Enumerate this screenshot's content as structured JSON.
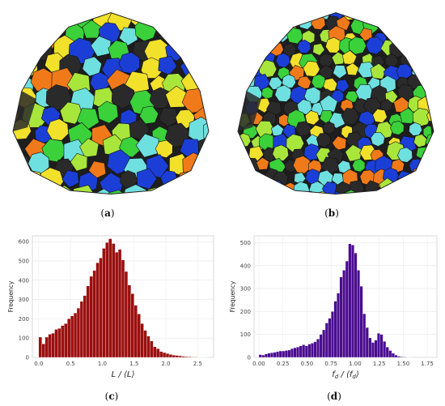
{
  "captions": {
    "a": {
      "open": "(",
      "letter": "a",
      "close": ")"
    },
    "b": {
      "open": "(",
      "letter": "b",
      "close": ")"
    },
    "c": {
      "open": "(",
      "letter": "c",
      "close": ")"
    },
    "d": {
      "open": "(",
      "letter": "d",
      "close": ")"
    }
  },
  "renders": {
    "a": {
      "palette": [
        "#3ad13a",
        "#f2e12b",
        "#1b3fd6",
        "#f07a1a",
        "#6fe0e0",
        "#2a2a2a",
        "#a9e63b"
      ]
    },
    "b": {
      "palette": [
        "#3ad13a",
        "#f2e12b",
        "#1b3fd6",
        "#f07a1a",
        "#6fe0e0",
        "#2a2a2a",
        "#a9e63b"
      ]
    }
  },
  "chart_data": [
    {
      "type": "bar",
      "ylabel": "Frequency",
      "xlabel": "L/⟨L⟩",
      "xlabel_parts": {
        "main": "L",
        "sep": " / ",
        "lbrack": "⟨",
        "inner": "L",
        "rbrack": "⟩"
      },
      "xlim": [
        -0.1,
        2.75
      ],
      "ylim": [
        0,
        630
      ],
      "xticks": [
        0.0,
        0.5,
        1.0,
        1.5,
        2.0,
        2.5
      ],
      "xtick_labels": [
        "0.0",
        "0.5",
        "1.0",
        "1.5",
        "2.0",
        "2.5"
      ],
      "yticks": [
        0,
        100,
        200,
        300,
        400,
        500,
        600
      ],
      "ytick_labels": [
        "0",
        "100",
        "200",
        "300",
        "400",
        "500",
        "600"
      ],
      "bin_start": 0.0,
      "bin_width": 0.05,
      "color": "#9b0f0f",
      "values": [
        105,
        70,
        105,
        120,
        125,
        145,
        150,
        165,
        175,
        200,
        215,
        230,
        255,
        290,
        320,
        370,
        420,
        450,
        490,
        515,
        565,
        595,
        615,
        590,
        545,
        560,
        505,
        445,
        375,
        330,
        270,
        225,
        175,
        140,
        110,
        85,
        55,
        45,
        30,
        25,
        20,
        15,
        12,
        10,
        8,
        5,
        4,
        3,
        2,
        2,
        1,
        1,
        1
      ]
    },
    {
      "type": "bar",
      "ylabel": "Frequency",
      "xlabel": "f_d/⟨f_d⟩",
      "xlabel_parts": {
        "main": "f",
        "sub": "d",
        "sep": " / ",
        "lbrack": "⟨",
        "inner": "f",
        "inner_sub": "d",
        "rbrack": "⟩"
      },
      "xlim": [
        -0.05,
        1.85
      ],
      "ylim": [
        0,
        530
      ],
      "xticks": [
        0.0,
        0.25,
        0.5,
        0.75,
        1.0,
        1.25,
        1.5,
        1.75
      ],
      "xtick_labels": [
        "0.00",
        "0.25",
        "0.50",
        "0.75",
        "1.00",
        "1.25",
        "1.50",
        "1.75"
      ],
      "yticks": [
        0,
        100,
        200,
        300,
        400,
        500
      ],
      "ytick_labels": [
        "0",
        "100",
        "200",
        "300",
        "400",
        "500"
      ],
      "bin_start": 0.0,
      "bin_width": 0.03,
      "color": "#4a0c8f",
      "values": [
        12,
        10,
        15,
        18,
        20,
        22,
        25,
        28,
        28,
        30,
        32,
        38,
        42,
        45,
        50,
        55,
        50,
        58,
        62,
        68,
        80,
        100,
        120,
        150,
        170,
        200,
        245,
        280,
        350,
        380,
        420,
        495,
        490,
        455,
        380,
        310,
        190,
        130,
        85,
        65,
        75,
        105,
        100,
        70,
        45,
        30,
        18,
        10,
        5,
        3,
        2,
        1,
        1
      ]
    }
  ]
}
